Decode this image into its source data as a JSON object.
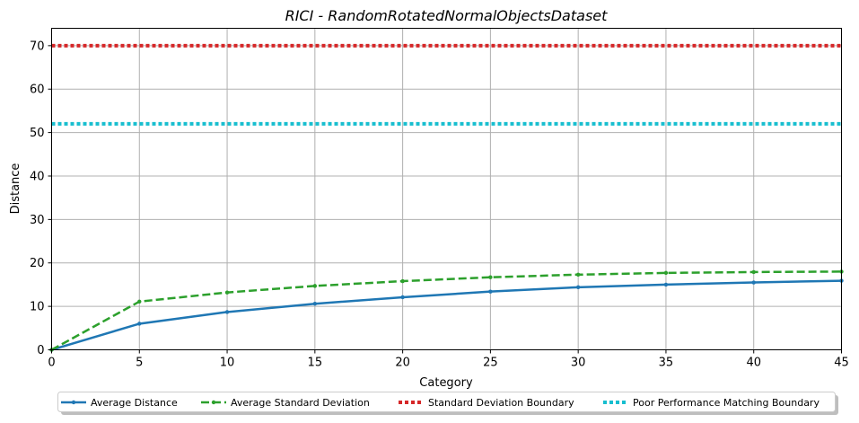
{
  "chart_data": {
    "type": "line",
    "title": "RICI - RandomRotatedNormalObjectsDataset",
    "xlabel": "Category",
    "ylabel": "Distance",
    "xlim": [
      0,
      45
    ],
    "ylim": [
      0,
      74
    ],
    "xticks": [
      0,
      5,
      10,
      15,
      20,
      25,
      30,
      35,
      40,
      45
    ],
    "yticks": [
      0,
      10,
      20,
      30,
      40,
      50,
      60,
      70
    ],
    "grid": true,
    "legend_position": "bottom-center",
    "series": [
      {
        "name": "Average Distance",
        "color": "#1f77b4",
        "style": "solid-marker",
        "x": [
          0,
          5,
          10,
          15,
          20,
          25,
          30,
          35,
          40,
          45
        ],
        "values": [
          0,
          6.0,
          8.7,
          10.6,
          12.1,
          13.4,
          14.4,
          15.0,
          15.5,
          15.9
        ]
      },
      {
        "name": "Average Standard Deviation",
        "color": "#2ca02c",
        "style": "dashed-marker",
        "x": [
          0,
          5,
          10,
          15,
          20,
          25,
          30,
          35,
          40,
          45
        ],
        "values": [
          0,
          11.1,
          13.2,
          14.7,
          15.8,
          16.7,
          17.3,
          17.7,
          17.9,
          18.0
        ]
      },
      {
        "name": "Standard Deviation Boundary",
        "color": "#d62728",
        "style": "dotted",
        "x": [
          0,
          45
        ],
        "values": [
          70,
          70
        ]
      },
      {
        "name": "Poor Performance Matching Boundary",
        "color": "#17becf",
        "style": "dotted",
        "x": [
          0,
          45
        ],
        "values": [
          52,
          52
        ]
      }
    ]
  }
}
